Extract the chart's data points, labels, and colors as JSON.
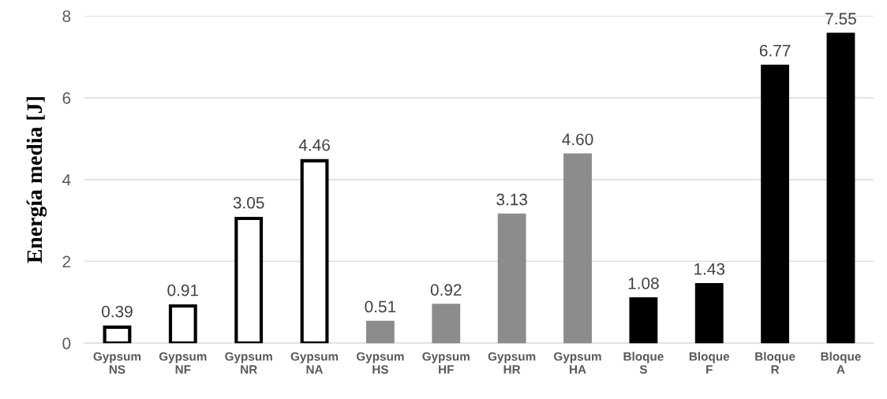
{
  "chart_data": {
    "type": "bar",
    "ylabel": "Energía media [J]",
    "categories": [
      "Gypsum\nNS",
      "Gypsum\nNF",
      "Gypsum\nNR",
      "Gypsum\nNA",
      "Gypsum\nHS",
      "Gypsum\nHF",
      "Gypsum\nHR",
      "Gypsum\nHA",
      "Bloque\nS",
      "Bloque\nF",
      "Bloque\nR",
      "Bloque\nA"
    ],
    "values": [
      0.39,
      0.91,
      3.05,
      4.46,
      0.51,
      0.92,
      3.13,
      4.6,
      1.08,
      1.43,
      6.77,
      7.55
    ],
    "value_labels": [
      "0.39",
      "0.91",
      "3.05",
      "4.46",
      "0.51",
      "0.92",
      "3.13",
      "4.60",
      "1.08",
      "1.43",
      "6.77",
      "7.55"
    ],
    "colors": [
      "#ffffff",
      "#ffffff",
      "#ffffff",
      "#ffffff",
      "#8c8c8c",
      "#8c8c8c",
      "#8c8c8c",
      "#8c8c8c",
      "#000000",
      "#000000",
      "#000000",
      "#000000"
    ],
    "ylim": [
      0,
      8
    ],
    "yticks": [
      0,
      2,
      4,
      6,
      8
    ],
    "grid": "y"
  }
}
